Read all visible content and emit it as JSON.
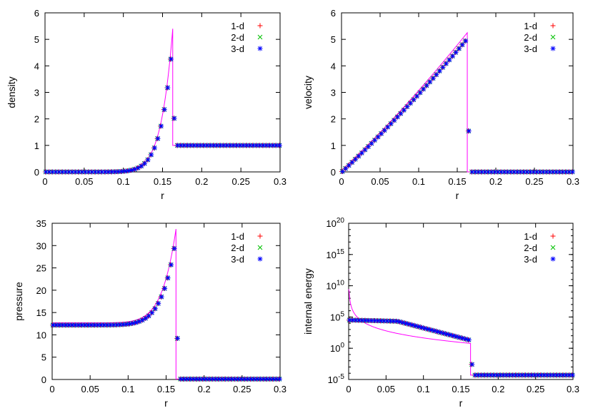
{
  "figure": {
    "layout": "2x2 grid of panels"
  },
  "chart_data": [
    {
      "type": "scatter",
      "xlabel": "r",
      "ylabel": "density",
      "xlim": [
        0,
        0.3
      ],
      "ylim": [
        0,
        6
      ],
      "yscale": "linear",
      "xticks": [
        0,
        0.05,
        0.1,
        0.15,
        0.2,
        0.25,
        0.3
      ],
      "xtick_labels": [
        "0",
        "0.05",
        "0.1",
        "0.15",
        "0.2",
        "0.25",
        "0.3"
      ],
      "yticks": [
        0,
        1,
        2,
        3,
        4,
        5,
        6
      ],
      "ytick_labels": [
        "0",
        "1",
        "2",
        "3",
        "4",
        "5",
        "6"
      ],
      "grid": false,
      "legend_position": "top-right",
      "series": [
        {
          "name": "1-d",
          "marker": "plus",
          "color": "#ff0000"
        },
        {
          "name": "2-d",
          "marker": "cross",
          "color": "#00c000"
        },
        {
          "name": "3-d",
          "marker": "star",
          "color": "#0000ff"
        }
      ],
      "reference_curve": {
        "color": "#ff00ff",
        "label": ""
      }
    },
    {
      "type": "scatter",
      "xlabel": "r",
      "ylabel": "velocity",
      "xlim": [
        0,
        0.3
      ],
      "ylim": [
        0,
        6
      ],
      "yscale": "linear",
      "xticks": [
        0,
        0.05,
        0.1,
        0.15,
        0.2,
        0.25,
        0.3
      ],
      "xtick_labels": [
        "0",
        "0.05",
        "0.1",
        "0.15",
        "0.2",
        "0.25",
        "0.3"
      ],
      "yticks": [
        0,
        1,
        2,
        3,
        4,
        5,
        6
      ],
      "ytick_labels": [
        "0",
        "1",
        "2",
        "3",
        "4",
        "5",
        "6"
      ],
      "grid": false,
      "legend_position": "top-right",
      "series": [
        {
          "name": "1-d",
          "marker": "plus",
          "color": "#ff0000"
        },
        {
          "name": "2-d",
          "marker": "cross",
          "color": "#00c000"
        },
        {
          "name": "3-d",
          "marker": "star",
          "color": "#0000ff"
        }
      ],
      "reference_curve": {
        "color": "#ff00ff",
        "label": ""
      }
    },
    {
      "type": "scatter",
      "xlabel": "r",
      "ylabel": "pressure",
      "xlim": [
        0,
        0.3
      ],
      "ylim": [
        0,
        35
      ],
      "yscale": "linear",
      "xticks": [
        0,
        0.05,
        0.1,
        0.15,
        0.2,
        0.25,
        0.3
      ],
      "xtick_labels": [
        "0",
        "0.05",
        "0.1",
        "0.15",
        "0.2",
        "0.25",
        "0.3"
      ],
      "yticks": [
        0,
        5,
        10,
        15,
        20,
        25,
        30,
        35
      ],
      "ytick_labels": [
        "0",
        "5",
        "10",
        "15",
        "20",
        "25",
        "30",
        "35"
      ],
      "grid": false,
      "legend_position": "top-right",
      "series": [
        {
          "name": "1-d",
          "marker": "plus",
          "color": "#ff0000"
        },
        {
          "name": "2-d",
          "marker": "cross",
          "color": "#00c000"
        },
        {
          "name": "3-d",
          "marker": "star",
          "color": "#0000ff"
        }
      ],
      "reference_curve": {
        "color": "#ff00ff",
        "label": ""
      }
    },
    {
      "type": "scatter",
      "xlabel": "r",
      "ylabel": "internal energy",
      "xlim": [
        0,
        0.3
      ],
      "ylim": [
        1e-05,
        1e+20
      ],
      "yscale": "log",
      "xticks": [
        0,
        0.05,
        0.1,
        0.15,
        0.2,
        0.25,
        0.3
      ],
      "xtick_labels": [
        "0",
        "0.05",
        "0.1",
        "0.15",
        "0.2",
        "0.25",
        "0.3"
      ],
      "yticks_exp": [
        -5,
        0,
        5,
        10,
        15,
        20
      ],
      "ytick_base": "10",
      "ytick_exponents": [
        "-5",
        "0",
        "5",
        "10",
        "15",
        "20"
      ],
      "grid": false,
      "legend_position": "top-right",
      "series": [
        {
          "name": "1-d",
          "marker": "plus",
          "color": "#ff0000"
        },
        {
          "name": "2-d",
          "marker": "cross",
          "color": "#00c000"
        },
        {
          "name": "3-d",
          "marker": "star",
          "color": "#0000ff"
        }
      ],
      "reference_curve": {
        "color": "#ff00ff",
        "label": ""
      }
    }
  ]
}
